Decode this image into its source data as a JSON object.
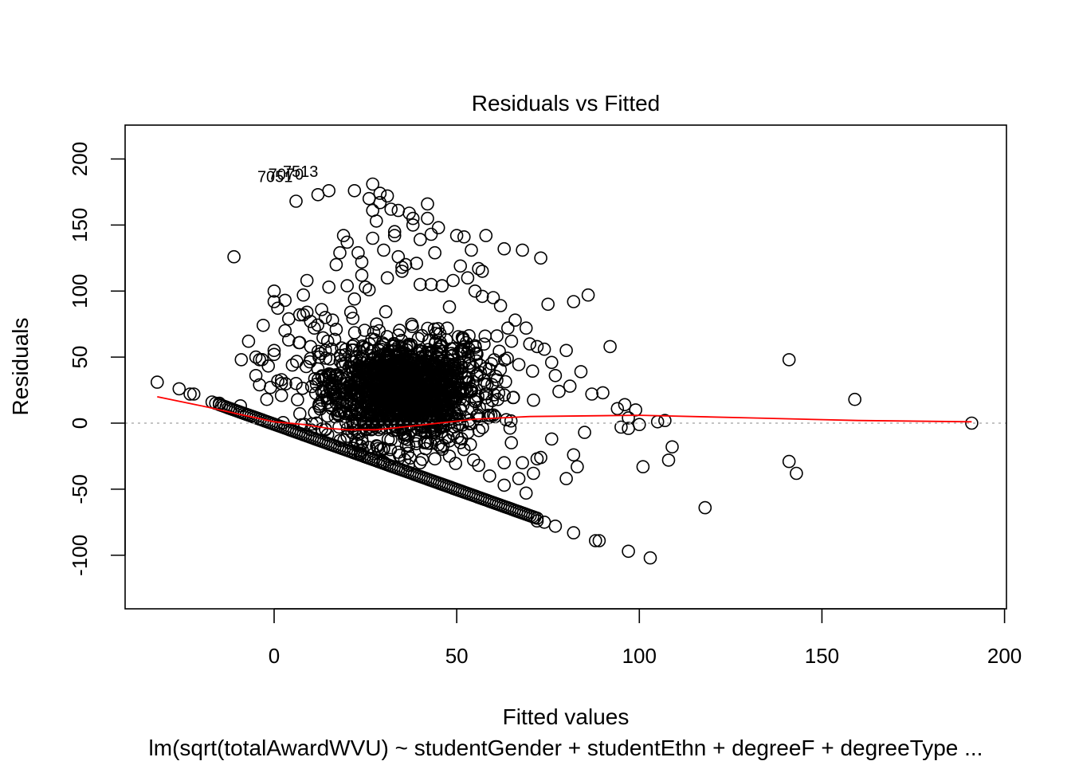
{
  "chart_data": {
    "type": "scatter",
    "title": "Residuals vs Fitted",
    "xlabel": "Fitted values",
    "ylabel": "Residuals",
    "subtitle": "lm(sqrt(totalAwardWVU) ~ studentGender + studentEthn + degreeF + degreeType ...",
    "xlim": [
      -40,
      200
    ],
    "ylim": [
      -140,
      225
    ],
    "x_ticks": [
      0,
      50,
      100,
      150,
      200
    ],
    "y_ticks": [
      -100,
      -50,
      0,
      50,
      100,
      150,
      200
    ],
    "reference_line_y": 0,
    "point_labels": [
      {
        "text": "7051",
        "x": 2,
        "y": 186
      },
      {
        "text": "7070",
        "x": 5,
        "y": 188
      },
      {
        "text": "7513",
        "x": 9,
        "y": 190
      }
    ],
    "points": [
      [
        -32,
        31
      ],
      [
        -26,
        26
      ],
      [
        -23,
        22
      ],
      [
        -22,
        22
      ],
      [
        -17,
        16
      ],
      [
        -16,
        15
      ],
      [
        -15,
        15
      ],
      [
        -11,
        126
      ],
      [
        -9,
        48
      ],
      [
        -7,
        62
      ],
      [
        -5,
        50
      ],
      [
        -5,
        36
      ],
      [
        -4,
        29
      ],
      [
        -4,
        48
      ],
      [
        -3,
        74
      ],
      [
        -2,
        18
      ],
      [
        -1,
        27
      ],
      [
        0,
        100
      ],
      [
        0,
        92
      ],
      [
        0,
        55
      ],
      [
        0,
        52
      ],
      [
        1,
        87
      ],
      [
        1,
        32
      ],
      [
        2,
        30
      ],
      [
        2,
        21
      ],
      [
        3,
        70
      ],
      [
        3,
        93
      ],
      [
        4,
        79
      ],
      [
        4,
        63
      ],
      [
        5,
        44
      ],
      [
        6,
        168
      ],
      [
        6,
        30
      ],
      [
        7,
        61
      ],
      [
        7,
        82
      ],
      [
        8,
        82
      ],
      [
        8,
        97
      ],
      [
        9,
        84
      ],
      [
        9,
        108
      ],
      [
        10,
        77
      ],
      [
        10,
        58
      ],
      [
        11,
        72
      ],
      [
        12,
        173
      ],
      [
        12,
        41
      ],
      [
        13,
        86
      ],
      [
        14,
        80
      ],
      [
        14,
        55
      ],
      [
        15,
        103
      ],
      [
        15,
        176
      ],
      [
        16,
        78
      ],
      [
        17,
        120
      ],
      [
        17,
        71
      ],
      [
        18,
        129
      ],
      [
        19,
        142
      ],
      [
        20,
        137
      ],
      [
        20,
        104
      ],
      [
        21,
        84
      ],
      [
        22,
        94
      ],
      [
        22,
        176
      ],
      [
        23,
        129
      ],
      [
        24,
        122
      ],
      [
        24,
        112
      ],
      [
        25,
        103
      ],
      [
        26,
        170
      ],
      [
        26,
        101
      ],
      [
        27,
        181
      ],
      [
        27,
        140
      ],
      [
        27,
        161
      ],
      [
        28,
        153
      ],
      [
        29,
        174
      ],
      [
        29,
        167
      ],
      [
        30,
        131
      ],
      [
        31,
        172
      ],
      [
        31,
        110
      ],
      [
        32,
        162
      ],
      [
        33,
        145
      ],
      [
        33,
        142
      ],
      [
        34,
        126
      ],
      [
        34,
        161
      ],
      [
        35,
        118
      ],
      [
        35,
        115
      ],
      [
        36,
        120
      ],
      [
        37,
        159
      ],
      [
        38,
        155
      ],
      [
        38,
        150
      ],
      [
        39,
        121
      ],
      [
        40,
        139
      ],
      [
        40,
        105
      ],
      [
        42,
        166
      ],
      [
        42,
        155
      ],
      [
        43,
        143
      ],
      [
        43,
        105
      ],
      [
        44,
        129
      ],
      [
        45,
        148
      ],
      [
        46,
        104
      ],
      [
        48,
        88
      ],
      [
        49,
        108
      ],
      [
        50,
        142
      ],
      [
        51,
        119
      ],
      [
        52,
        141
      ],
      [
        53,
        110
      ],
      [
        54,
        131
      ],
      [
        55,
        100
      ],
      [
        56,
        117
      ],
      [
        57,
        115
      ],
      [
        57,
        96
      ],
      [
        58,
        142
      ],
      [
        60,
        95
      ],
      [
        61,
        66
      ],
      [
        62,
        89
      ],
      [
        63,
        132
      ],
      [
        64,
        72
      ],
      [
        65,
        62
      ],
      [
        66,
        78
      ],
      [
        68,
        131
      ],
      [
        69,
        72
      ],
      [
        70,
        60
      ],
      [
        72,
        58
      ],
      [
        73,
        125
      ],
      [
        74,
        56
      ],
      [
        75,
        90
      ],
      [
        76,
        46
      ],
      [
        77,
        36
      ],
      [
        78,
        24
      ],
      [
        80,
        55
      ],
      [
        81,
        28
      ],
      [
        82,
        92
      ],
      [
        84,
        39
      ],
      [
        86,
        97
      ],
      [
        87,
        22
      ],
      [
        90,
        23
      ],
      [
        92,
        58
      ],
      [
        94,
        11
      ],
      [
        95,
        -3
      ],
      [
        96,
        14
      ],
      [
        97,
        4
      ],
      [
        97,
        -4
      ],
      [
        99,
        10
      ],
      [
        100,
        -1
      ],
      [
        101,
        -33
      ],
      [
        103,
        -102
      ],
      [
        105,
        1
      ],
      [
        107,
        2
      ],
      [
        108,
        -28
      ],
      [
        109,
        -18
      ],
      [
        118,
        -64
      ],
      [
        141,
        48
      ],
      [
        141,
        -29
      ],
      [
        143,
        -38
      ],
      [
        159,
        18
      ],
      [
        191,
        0
      ],
      [
        56,
        -32
      ],
      [
        59,
        -40
      ],
      [
        63,
        -30
      ],
      [
        63,
        -47
      ],
      [
        67,
        -42
      ],
      [
        68,
        -30
      ],
      [
        69,
        -53
      ],
      [
        71,
        -38
      ],
      [
        72,
        -27
      ],
      [
        73,
        -26
      ],
      [
        76,
        -12
      ],
      [
        80,
        -42
      ],
      [
        82,
        -24
      ],
      [
        83,
        -33
      ],
      [
        85,
        -7
      ],
      [
        88,
        -89
      ],
      [
        89,
        -89
      ],
      [
        97,
        -97
      ],
      [
        82,
        -83
      ],
      [
        77,
        -78
      ],
      [
        74,
        -75
      ],
      [
        72,
        -74
      ],
      [
        40,
        -30
      ],
      [
        44,
        -27
      ],
      [
        48,
        -25
      ],
      [
        52,
        -20
      ],
      [
        30,
        -19
      ],
      [
        34,
        -22
      ],
      [
        20,
        -10
      ],
      [
        24,
        -12
      ]
    ],
    "band": {
      "x_start": -15,
      "x_end": 72,
      "y_start": 14,
      "y_end": -72
    },
    "dense_region": {
      "cx": 35,
      "cy": 25,
      "rx": 22,
      "ry": 40
    },
    "smooth_line": [
      [
        -32,
        20
      ],
      [
        -25,
        16
      ],
      [
        -18,
        12
      ],
      [
        -10,
        7
      ],
      [
        0,
        1
      ],
      [
        8,
        -1
      ],
      [
        15,
        -4
      ],
      [
        20,
        -5
      ],
      [
        28,
        -5
      ],
      [
        35,
        -3
      ],
      [
        45,
        0
      ],
      [
        55,
        3
      ],
      [
        70,
        5
      ],
      [
        100,
        6
      ],
      [
        130,
        4
      ],
      [
        160,
        2
      ],
      [
        191,
        1
      ]
    ],
    "colors": {
      "points": "#000000",
      "smooth": "#ff0000",
      "reference_line": "#b0b0b0"
    }
  }
}
